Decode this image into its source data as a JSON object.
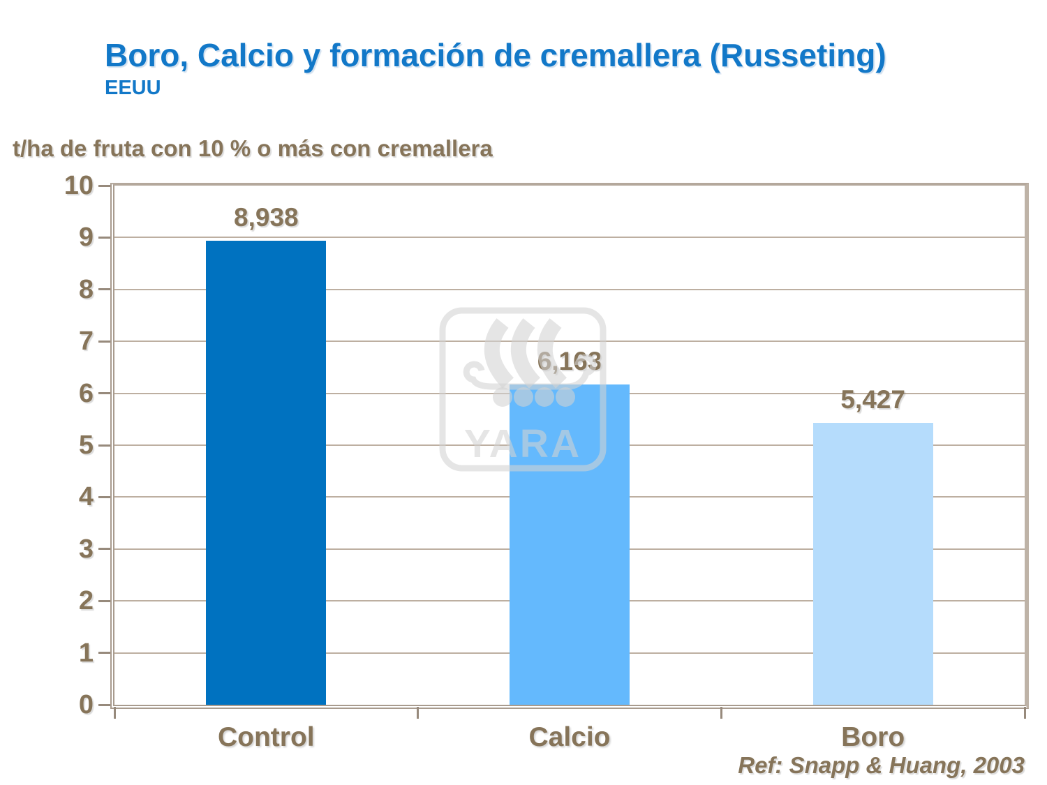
{
  "slide": {
    "title": "Boro, Calcio y formación de cremallera (Russeting)",
    "subtitle": "EEUU",
    "reference": "Ref: Snapp & Huang, 2003"
  },
  "chart_data": {
    "type": "bar",
    "title": "Boro, Calcio y formación de cremallera (Russeting)",
    "subtitle": "EEUU",
    "ylabel": "t/ha de fruta con 10 % o más con cremallera",
    "xlabel": "",
    "categories": [
      "Control",
      "Calcio",
      "Boro"
    ],
    "values": [
      8.938,
      6.163,
      5.427
    ],
    "value_labels": [
      "8,938",
      "6,163",
      "5,427"
    ],
    "bar_colors": [
      "#0072c0",
      "#64b9fd",
      "#b5dcfc"
    ],
    "ylim": [
      0,
      10
    ],
    "yticks": [
      0,
      1,
      2,
      3,
      4,
      5,
      6,
      7,
      8,
      9,
      10
    ],
    "grid": true,
    "legend": "none",
    "reference": "Ref: Snapp & Huang, 2003"
  },
  "watermark": {
    "name": "yara-logo",
    "text": "YARA",
    "color": "#e7e7e7"
  },
  "colors": {
    "title_blue": "#1278c8",
    "text_brown": "#867459",
    "axis_tan": "#a89b8e",
    "gridline_tan": "#bdafa1",
    "background": "#ffffff"
  }
}
